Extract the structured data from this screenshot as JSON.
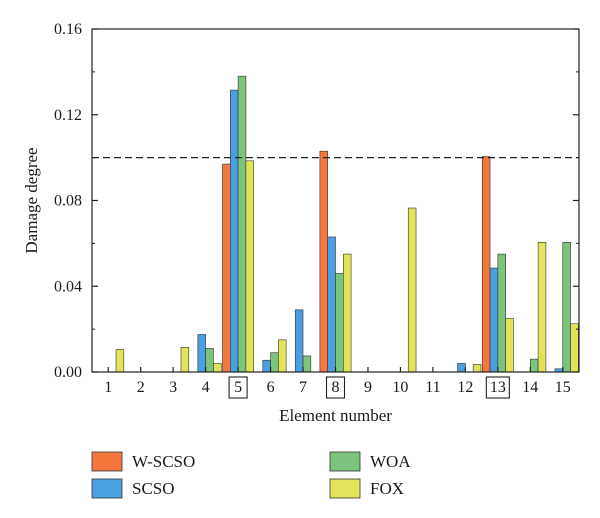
{
  "chart_data": {
    "type": "bar",
    "xlabel": "Element number",
    "ylabel": "Damage degree",
    "ylim": [
      0,
      0.16
    ],
    "yticks": [
      "0.00",
      "0.04",
      "0.08",
      "0.12",
      "0.16"
    ],
    "categories": [
      "1",
      "2",
      "3",
      "4",
      "5",
      "6",
      "7",
      "8",
      "9",
      "10",
      "11",
      "12",
      "13",
      "14",
      "15"
    ],
    "boxed_categories": [
      "5",
      "8",
      "13"
    ],
    "threshold": 0.1,
    "threshold_style": "dashed",
    "grid": false,
    "legend_placement": "bottom",
    "series": [
      {
        "name": "W-SCSO",
        "color": "#f4773e",
        "values": [
          0,
          0,
          0,
          0,
          0.097,
          0,
          0,
          0.103,
          0,
          0,
          0,
          0,
          0.1005,
          0,
          0
        ]
      },
      {
        "name": "SCSO",
        "color": "#4a9fe0",
        "values": [
          0,
          0,
          0,
          0.0175,
          0.1315,
          0.0055,
          0.029,
          0.063,
          0,
          0,
          0,
          0.004,
          0.0485,
          0,
          0.0015
        ]
      },
      {
        "name": "WOA",
        "color": "#7cc47c",
        "values": [
          0,
          0,
          0,
          0.011,
          0.138,
          0.009,
          0.0075,
          0.046,
          0,
          0,
          0,
          0,
          0.055,
          0.006,
          0.0605
        ]
      },
      {
        "name": "FOX",
        "color": "#e3e35a",
        "values": [
          0.0105,
          0,
          0.0115,
          0.004,
          0.0985,
          0.015,
          0,
          0.055,
          0,
          0.0765,
          0,
          0.0035,
          0.025,
          0.0605,
          0.0225
        ]
      }
    ]
  }
}
